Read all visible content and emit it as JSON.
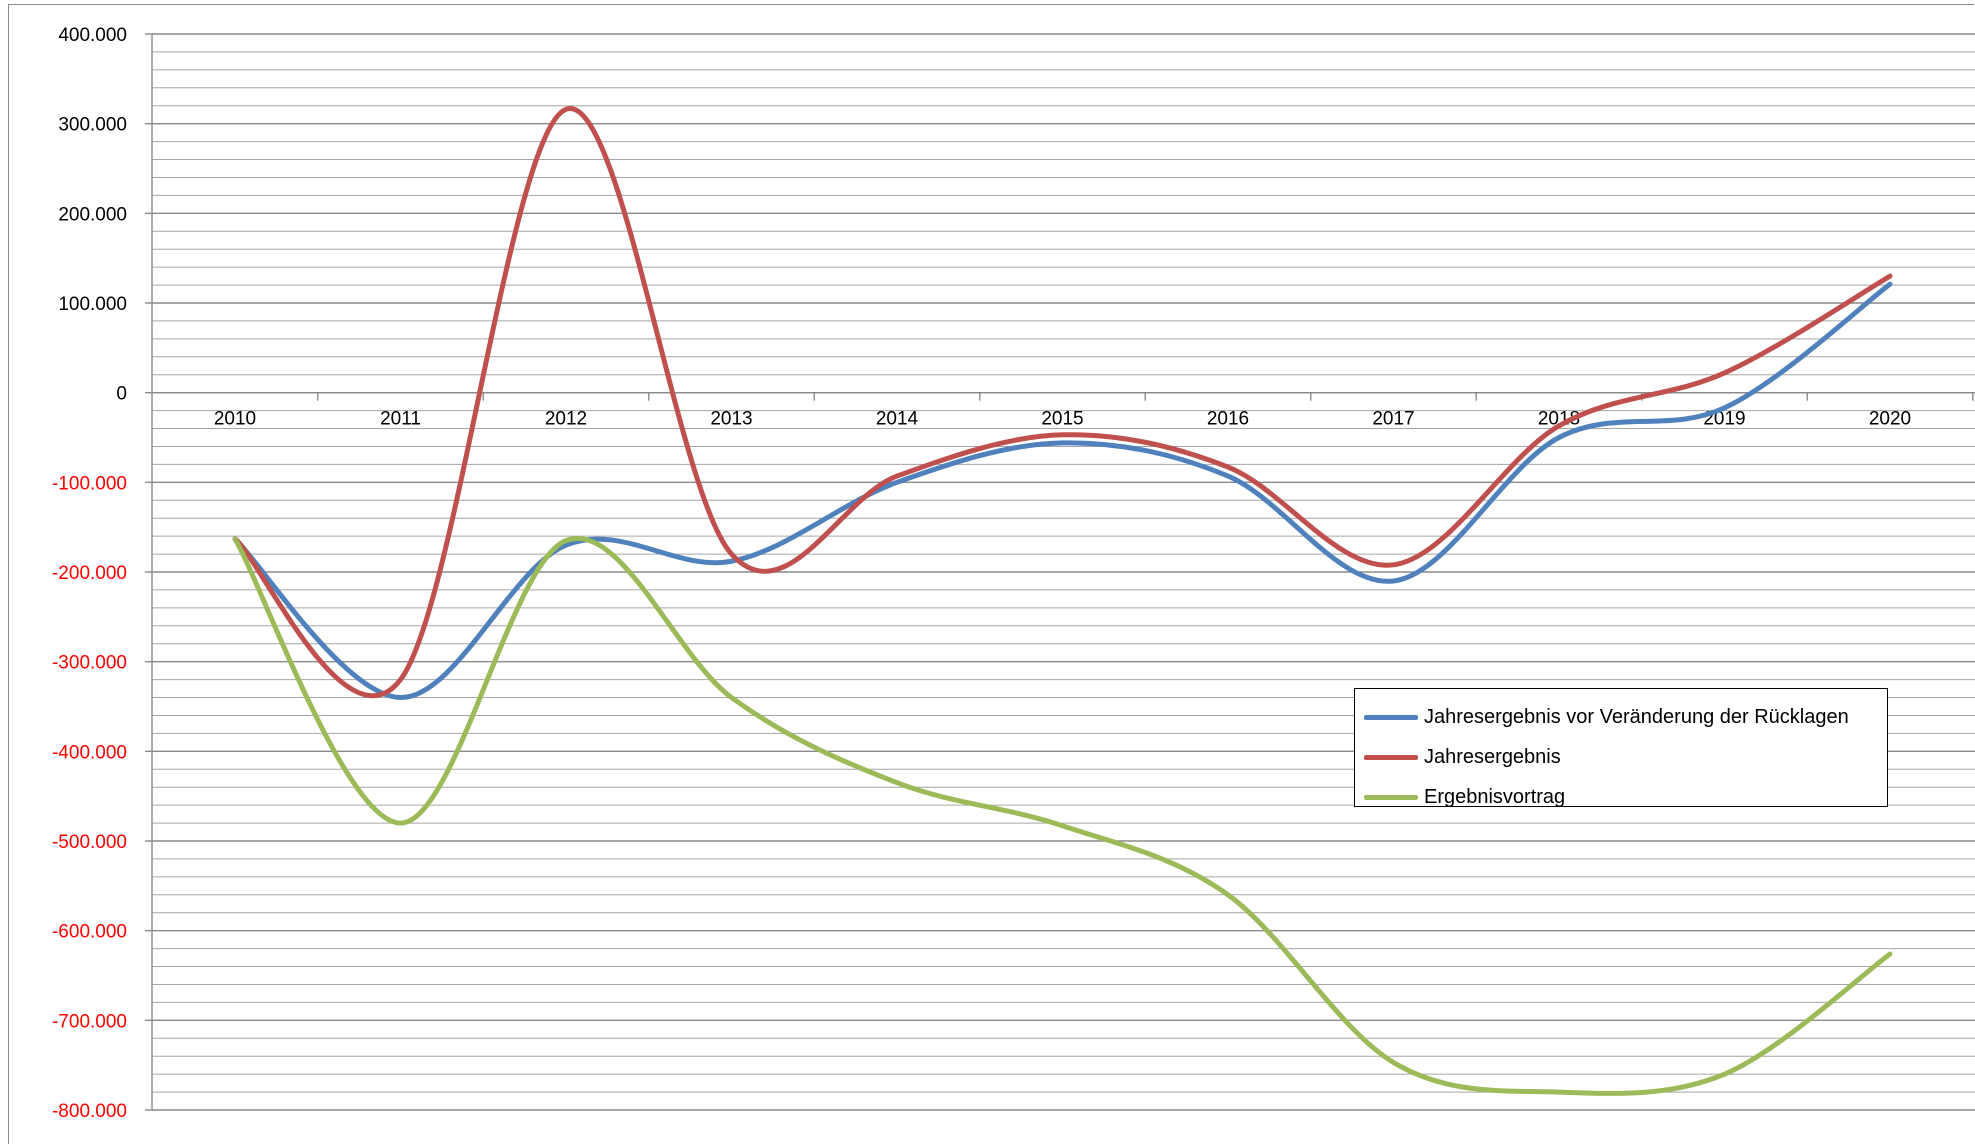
{
  "chart_data": {
    "type": "line",
    "title": "",
    "xlabel": "",
    "ylabel": "",
    "categories": [
      "2010",
      "2011",
      "2012",
      "2013",
      "2014",
      "2015",
      "2016",
      "2017",
      "2018",
      "2019",
      "2020"
    ],
    "ylim": [
      -800000,
      400000
    ],
    "y_ticks": [
      {
        "value": 400000,
        "label": "400.000",
        "color": "#000000"
      },
      {
        "value": 300000,
        "label": "300.000",
        "color": "#000000"
      },
      {
        "value": 200000,
        "label": "200.000",
        "color": "#000000"
      },
      {
        "value": 100000,
        "label": "100.000",
        "color": "#000000"
      },
      {
        "value": 0,
        "label": "0",
        "color": "#000000"
      },
      {
        "value": -100000,
        "label": "-100.000",
        "color": "#ff0000"
      },
      {
        "value": -200000,
        "label": "-200.000",
        "color": "#ff0000"
      },
      {
        "value": -300000,
        "label": "-300.000",
        "color": "#ff0000"
      },
      {
        "value": -400000,
        "label": "-400.000",
        "color": "#ff0000"
      },
      {
        "value": -500000,
        "label": "-500.000",
        "color": "#ff0000"
      },
      {
        "value": -600000,
        "label": "-600.000",
        "color": "#ff0000"
      },
      {
        "value": -700000,
        "label": "-700.000",
        "color": "#ff0000"
      },
      {
        "value": -800000,
        "label": "-800.000",
        "color": "#ff0000"
      }
    ],
    "grid": true,
    "minor_grid_step": 20000,
    "legend_position": "right",
    "smooth": true,
    "series": [
      {
        "name": "Jahresergebnis vor Veränderung der Rücklagen",
        "color": "#4f81bd",
        "values": [
          -163000,
          -340000,
          -170000,
          -188000,
          -100000,
          -56000,
          -93000,
          -210000,
          -50000,
          -17000,
          121000
        ]
      },
      {
        "name": "Jahresergebnis",
        "color": "#c0504d",
        "values": [
          -163000,
          -320000,
          316000,
          -180000,
          -93000,
          -47000,
          -83000,
          -192000,
          -37000,
          22000,
          130000
        ]
      },
      {
        "name": "Ergebnisvortrag",
        "color": "#9bbb59",
        "values": [
          -163000,
          -480000,
          -165000,
          -340000,
          -435000,
          -483000,
          -560000,
          -747000,
          -780000,
          -760000,
          -626000
        ]
      }
    ]
  }
}
